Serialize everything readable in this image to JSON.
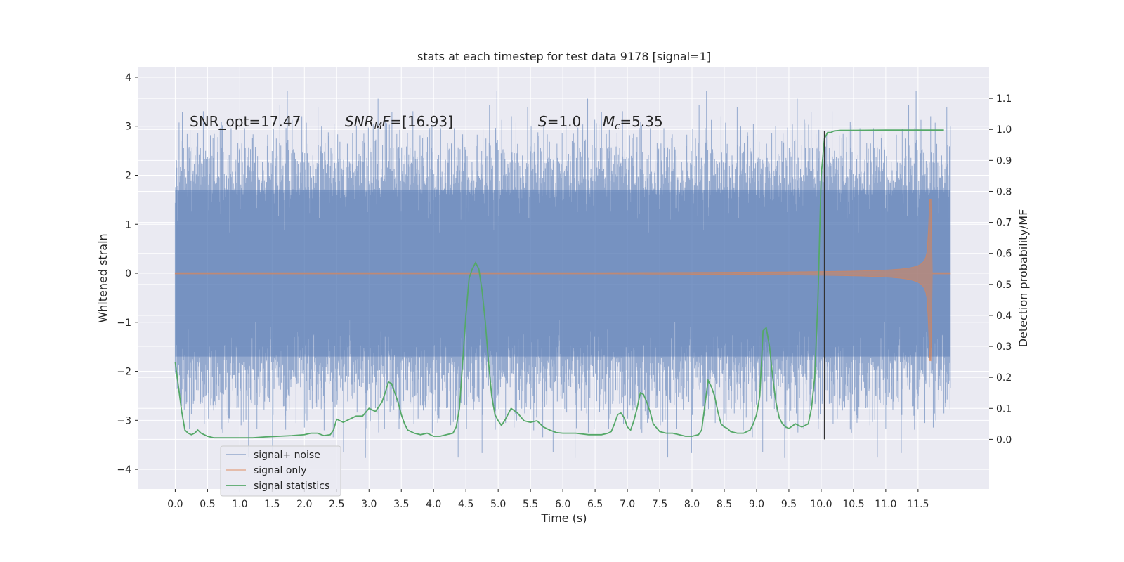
{
  "chart_data": {
    "type": "line",
    "title": "stats at each timestep for test data 9178 [signal=1]",
    "xlabel": "Time (s)",
    "ylabel": "Whitened strain",
    "y2label": "Detection probability/MF",
    "xlim": [
      -0.57,
      12.6
    ],
    "ylim": [
      -4.4,
      4.2
    ],
    "y2lim": [
      -0.16,
      1.2
    ],
    "x_ticks": [
      "0.0",
      "0.5",
      "1.0",
      "1.5",
      "2.0",
      "2.5",
      "3.0",
      "3.5",
      "4.0",
      "4.5",
      "5.0",
      "5.5",
      "6.0",
      "6.5",
      "7.0",
      "7.5",
      "8.0",
      "8.5",
      "9.0",
      "9.5",
      "10.0",
      "10.5",
      "11.0",
      "11.5"
    ],
    "y_ticks": [
      "4",
      "3",
      "2",
      "1",
      "0",
      "−1",
      "−2",
      "−3",
      "−4"
    ],
    "y2_ticks": [
      "1.1",
      "1.0",
      "0.9",
      "0.8",
      "0.7",
      "0.6",
      "0.5",
      "0.4",
      "0.3",
      "0.2",
      "0.1",
      "0.0"
    ],
    "legend": {
      "location": "lower-left",
      "entries": [
        "signal+ noise",
        "signal only",
        "signal statistics"
      ]
    },
    "annotations": {
      "snr_opt": "SNR_opt=17.47",
      "snr_mf_name": "SNR",
      "snr_mf_sub": "M",
      "snr_mf_tail": "F",
      "snr_mf_value": "=[16.93]",
      "s_name": "S",
      "s_value": "=1.0",
      "mc_name": "M",
      "mc_sub": "c",
      "mc_value": "=5.35"
    },
    "series": [
      {
        "name": "signal+ noise",
        "description": "whitened strain, noise band roughly ±2 with spikes to ±4",
        "t_range": [
          0.0,
          12.0
        ],
        "noise_std": 1.0,
        "peak_high": 3.8,
        "peak_low": -4.1
      },
      {
        "name": "signal only",
        "description": "chirp envelope growing toward merger",
        "t_range": [
          0.0,
          12.0
        ],
        "merger_time": 11.67,
        "peak_amplitude": 1.7
      },
      {
        "name": "signal statistics",
        "axis": "right",
        "x": [
          0.0,
          0.05,
          0.1,
          0.15,
          0.2,
          0.25,
          0.3,
          0.35,
          0.4,
          0.5,
          0.6,
          0.8,
          1.0,
          1.2,
          1.4,
          1.6,
          1.8,
          2.0,
          2.1,
          2.2,
          2.3,
          2.4,
          2.45,
          2.5,
          2.6,
          2.7,
          2.8,
          2.9,
          3.0,
          3.1,
          3.2,
          3.25,
          3.3,
          3.35,
          3.4,
          3.45,
          3.5,
          3.55,
          3.6,
          3.7,
          3.8,
          3.9,
          4.0,
          4.1,
          4.2,
          4.3,
          4.35,
          4.4,
          4.45,
          4.5,
          4.55,
          4.6,
          4.65,
          4.7,
          4.75,
          4.8,
          4.85,
          4.9,
          4.95,
          5.0,
          5.05,
          5.1,
          5.2,
          5.3,
          5.4,
          5.5,
          5.6,
          5.7,
          5.8,
          5.9,
          6.0,
          6.2,
          6.4,
          6.6,
          6.7,
          6.75,
          6.8,
          6.85,
          6.9,
          6.95,
          7.0,
          7.05,
          7.1,
          7.15,
          7.2,
          7.25,
          7.3,
          7.35,
          7.4,
          7.5,
          7.6,
          7.7,
          7.8,
          7.9,
          8.0,
          8.1,
          8.15,
          8.2,
          8.25,
          8.3,
          8.35,
          8.4,
          8.45,
          8.5,
          8.55,
          8.6,
          8.7,
          8.8,
          8.9,
          8.95,
          9.0,
          9.05,
          9.1,
          9.15,
          9.2,
          9.25,
          9.3,
          9.35,
          9.4,
          9.45,
          9.5,
          9.6,
          9.7,
          9.8,
          9.85,
          9.9,
          9.95,
          10.0,
          10.05,
          10.1,
          10.15,
          10.2,
          10.3,
          10.5,
          11.0,
          11.5,
          11.9
        ],
        "y": [
          0.25,
          0.17,
          0.09,
          0.03,
          0.02,
          0.015,
          0.02,
          0.03,
          0.02,
          0.01,
          0.005,
          0.005,
          0.005,
          0.005,
          0.008,
          0.01,
          0.012,
          0.015,
          0.02,
          0.02,
          0.012,
          0.015,
          0.03,
          0.065,
          0.055,
          0.065,
          0.075,
          0.075,
          0.1,
          0.09,
          0.12,
          0.15,
          0.185,
          0.18,
          0.15,
          0.12,
          0.08,
          0.05,
          0.03,
          0.02,
          0.015,
          0.02,
          0.01,
          0.01,
          0.015,
          0.02,
          0.04,
          0.1,
          0.25,
          0.4,
          0.52,
          0.55,
          0.57,
          0.55,
          0.48,
          0.38,
          0.25,
          0.14,
          0.08,
          0.06,
          0.045,
          0.06,
          0.1,
          0.085,
          0.06,
          0.055,
          0.06,
          0.04,
          0.03,
          0.022,
          0.02,
          0.02,
          0.015,
          0.015,
          0.02,
          0.025,
          0.05,
          0.08,
          0.085,
          0.07,
          0.04,
          0.03,
          0.06,
          0.1,
          0.15,
          0.145,
          0.12,
          0.09,
          0.05,
          0.025,
          0.02,
          0.02,
          0.015,
          0.01,
          0.01,
          0.015,
          0.03,
          0.11,
          0.19,
          0.17,
          0.14,
          0.09,
          0.05,
          0.04,
          0.035,
          0.025,
          0.02,
          0.02,
          0.03,
          0.05,
          0.08,
          0.14,
          0.35,
          0.36,
          0.3,
          0.2,
          0.12,
          0.07,
          0.05,
          0.04,
          0.035,
          0.05,
          0.04,
          0.05,
          0.1,
          0.2,
          0.45,
          0.85,
          0.97,
          0.99,
          0.99,
          0.995,
          0.997,
          0.997,
          0.998,
          0.998,
          0.998
        ]
      }
    ],
    "colors": {
      "background": "#eaeaf2",
      "grid": "#ffffff",
      "signal_noise": "#4c72b0",
      "signal_only": "#dd8452",
      "statistics": "#55a868",
      "marker_line": "#333333"
    },
    "marker_time": 10.05
  }
}
